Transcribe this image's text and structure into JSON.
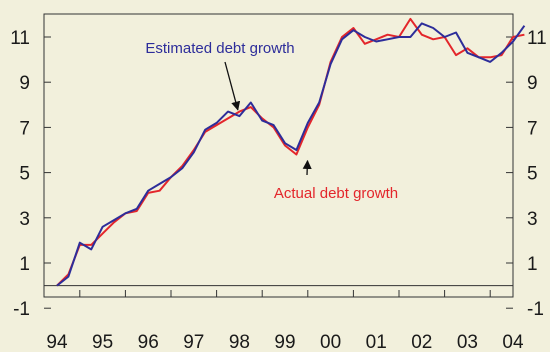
{
  "chart_data": {
    "type": "line",
    "title": "",
    "xlabel": "",
    "ylabel": "",
    "xlim": [
      1994.0,
      2004.4
    ],
    "ylim": [
      -1,
      12
    ],
    "grid": false,
    "x_tick_labels": [
      "94",
      "95",
      "96",
      "97",
      "98",
      "99",
      "00",
      "01",
      "02",
      "03",
      "04"
    ],
    "y_ticks": [
      11,
      9,
      7,
      5,
      3,
      1,
      -1
    ],
    "y_tick_labels": [
      "11",
      "9",
      "7",
      "5",
      "3",
      "1",
      "-1"
    ],
    "zero_line": 0,
    "x": [
      1994.0,
      1994.25,
      1994.5,
      1994.75,
      1995.0,
      1995.25,
      1995.5,
      1995.75,
      1996.0,
      1996.25,
      1996.5,
      1996.75,
      1997.0,
      1997.25,
      1997.5,
      1997.75,
      1998.0,
      1998.25,
      1998.5,
      1998.75,
      1999.0,
      1999.25,
      1999.5,
      1999.75,
      2000.0,
      2000.25,
      2000.5,
      2000.75,
      2001.0,
      2001.25,
      2001.5,
      2001.75,
      2002.0,
      2002.25,
      2002.5,
      2002.75,
      2003.0,
      2003.25,
      2003.5,
      2003.75,
      2004.0,
      2004.25
    ],
    "series": [
      {
        "name": "Estimated debt growth",
        "color": "#2d2d9a",
        "values": [
          0.0,
          0.4,
          1.9,
          1.6,
          2.6,
          2.9,
          3.2,
          3.4,
          4.2,
          4.5,
          4.8,
          5.2,
          5.9,
          6.9,
          7.2,
          7.7,
          7.5,
          8.1,
          7.3,
          7.1,
          6.3,
          6.0,
          7.2,
          8.1,
          9.8,
          10.9,
          11.3,
          11.0,
          10.8,
          10.9,
          11.0,
          11.0,
          11.6,
          11.4,
          11.0,
          11.2,
          10.3,
          10.1,
          9.9,
          10.3,
          10.8,
          11.5
        ]
      },
      {
        "name": "Actual debt growth",
        "color": "#e3262b",
        "values": [
          0.0,
          0.5,
          1.8,
          1.8,
          2.3,
          2.8,
          3.2,
          3.3,
          4.1,
          4.2,
          4.8,
          5.3,
          6.0,
          6.8,
          7.1,
          7.4,
          7.7,
          7.9,
          7.4,
          7.0,
          6.2,
          5.8,
          7.0,
          8.0,
          9.9,
          11.0,
          11.4,
          10.7,
          10.9,
          11.1,
          11.0,
          11.8,
          11.1,
          10.9,
          11.0,
          10.2,
          10.5,
          10.1,
          10.1,
          10.2,
          11.0,
          11.1
        ]
      }
    ],
    "annotations": [
      {
        "text": "Estimated debt growth",
        "color": "#2d2d9a",
        "arrow_to_x": 1997.9,
        "arrow_to_y": 7.6
      },
      {
        "text": "Actual debt growth",
        "color": "#e3262b",
        "arrow_to_x": 1999.45,
        "arrow_to_y": 5.7
      }
    ]
  }
}
